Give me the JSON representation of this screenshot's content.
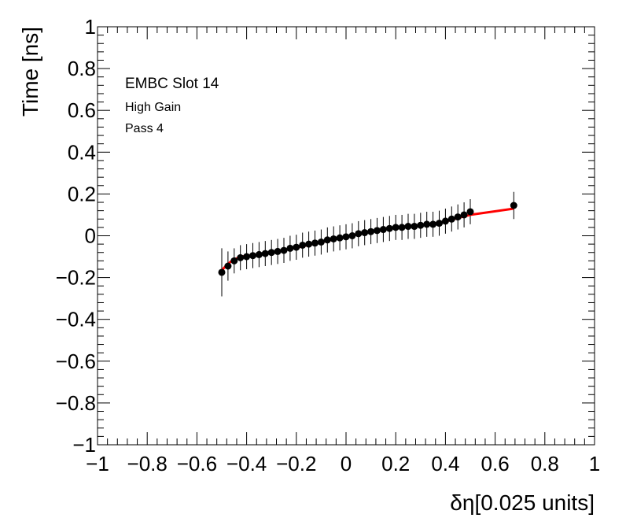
{
  "chart_data": {
    "type": "scatter",
    "title": "",
    "xlabel": "δη[0.025 units]",
    "ylabel": "Time [ns]",
    "xlim": [
      -1,
      1
    ],
    "ylim": [
      -1,
      1
    ],
    "x_ticks": [
      -1,
      -0.8,
      -0.6,
      -0.4,
      -0.2,
      0,
      0.2,
      0.4,
      0.6,
      0.8,
      1
    ],
    "y_ticks": [
      -1,
      -0.8,
      -0.6,
      -0.4,
      -0.2,
      0,
      0.2,
      0.4,
      0.6,
      0.8,
      1
    ],
    "x_tick_labels": [
      "−1",
      "−0.8",
      "−0.6",
      "−0.4",
      "−0.2",
      "0",
      "0.2",
      "0.4",
      "0.6",
      "0.8",
      "1"
    ],
    "y_tick_labels": [
      "−1",
      "−0.8",
      "−0.6",
      "−0.4",
      "−0.2",
      "0",
      "0.2",
      "0.4",
      "0.6",
      "0.8",
      "1"
    ],
    "grid": false,
    "annotations": [
      "EMBC Slot 14",
      "High Gain",
      "Pass 4"
    ],
    "marker_color": "#000000",
    "fit_color": "#ff0000",
    "series": [
      {
        "x": [
          -0.5,
          -0.475,
          -0.45,
          -0.425,
          -0.4,
          -0.375,
          -0.35,
          -0.325,
          -0.3,
          -0.275,
          -0.25,
          -0.225,
          -0.2,
          -0.175,
          -0.15,
          -0.125,
          -0.1,
          -0.075,
          -0.05,
          -0.025,
          0,
          0.025,
          0.05,
          0.075,
          0.1,
          0.125,
          0.15,
          0.175,
          0.2,
          0.225,
          0.25,
          0.275,
          0.3,
          0.325,
          0.35,
          0.375,
          0.4,
          0.425,
          0.45,
          0.475,
          0.5,
          0.675
        ],
        "y": [
          -0.175,
          -0.145,
          -0.12,
          -0.105,
          -0.1,
          -0.095,
          -0.09,
          -0.085,
          -0.08,
          -0.075,
          -0.07,
          -0.06,
          -0.055,
          -0.045,
          -0.04,
          -0.035,
          -0.03,
          -0.02,
          -0.015,
          -0.01,
          -0.005,
          0,
          0.01,
          0.015,
          0.02,
          0.025,
          0.03,
          0.035,
          0.04,
          0.04,
          0.045,
          0.045,
          0.05,
          0.055,
          0.055,
          0.06,
          0.07,
          0.08,
          0.09,
          0.1,
          0.115,
          0.145
        ],
        "yerr": [
          0.115,
          0.07,
          0.06,
          0.06,
          0.06,
          0.06,
          0.06,
          0.06,
          0.06,
          0.06,
          0.06,
          0.06,
          0.06,
          0.06,
          0.06,
          0.06,
          0.06,
          0.06,
          0.06,
          0.06,
          0.06,
          0.06,
          0.06,
          0.06,
          0.06,
          0.06,
          0.06,
          0.06,
          0.06,
          0.06,
          0.06,
          0.06,
          0.06,
          0.06,
          0.06,
          0.06,
          0.06,
          0.06,
          0.06,
          0.06,
          0.06,
          0.065
        ]
      }
    ],
    "fit": {
      "x": [
        -0.5,
        -0.48,
        -0.46,
        -0.44,
        -0.42,
        -0.4,
        -0.3,
        -0.2,
        -0.1,
        0,
        0.1,
        0.2,
        0.3,
        0.35,
        0.4,
        0.45,
        0.5,
        0.675
      ],
      "y": [
        -0.165,
        -0.14,
        -0.12,
        -0.108,
        -0.1,
        -0.097,
        -0.08,
        -0.057,
        -0.03,
        -0.005,
        0.02,
        0.04,
        0.05,
        0.057,
        0.068,
        0.085,
        0.1,
        0.13
      ]
    }
  }
}
